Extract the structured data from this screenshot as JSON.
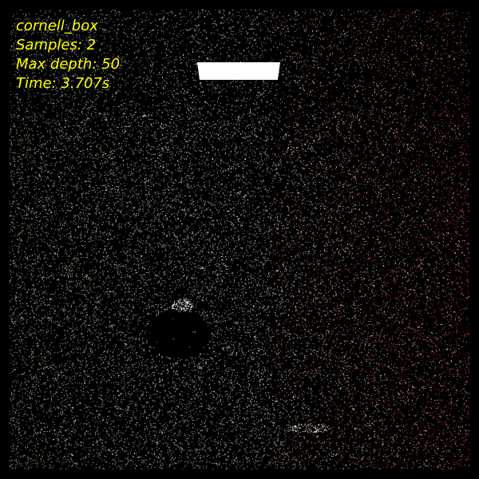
{
  "hud": {
    "scene_name": "cornell_box",
    "samples_line": "Samples: 2",
    "max_depth_line": "Max depth: 50",
    "time_line": "Time: 3.707s"
  },
  "colors": {
    "background": "#000000",
    "hud_text": "#ffff00",
    "light": "#ffffff",
    "wall_left": "#63c463",
    "wall_right": "#d9473a",
    "neutral": "#f2f2e6"
  }
}
